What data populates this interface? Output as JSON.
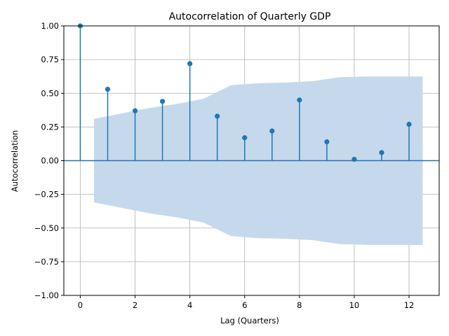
{
  "chart_data": {
    "type": "stem",
    "title": "Autocorrelation of Quarterly GDP",
    "xlabel": "Lag (Quarters)",
    "ylabel": "Autocorrelation",
    "xlim": [
      -0.6,
      13.1
    ],
    "ylim": [
      -1.0,
      1.0
    ],
    "xticks": [
      "0",
      "2",
      "4",
      "6",
      "8",
      "10",
      "12"
    ],
    "yticks": [
      "−1.00",
      "−0.75",
      "−0.50",
      "−0.25",
      "0.00",
      "0.25",
      "0.50",
      "0.75",
      "1.00"
    ],
    "grid": true,
    "lags": [
      0,
      1,
      2,
      3,
      4,
      5,
      6,
      7,
      8,
      9,
      10,
      11,
      12
    ],
    "values": [
      1.0,
      0.53,
      0.37,
      0.44,
      0.72,
      0.33,
      0.17,
      0.22,
      0.45,
      0.14,
      0.01,
      0.06,
      0.27
    ],
    "confidence_band": {
      "x": [
        0.5,
        1.5,
        2.5,
        3.5,
        4.5,
        5.5,
        6.5,
        7.5,
        8.5,
        9.5,
        10.5,
        11.5,
        12.5
      ],
      "upper": [
        0.31,
        0.35,
        0.39,
        0.42,
        0.46,
        0.56,
        0.575,
        0.58,
        0.59,
        0.62,
        0.625,
        0.625,
        0.625
      ]
    },
    "colors": {
      "stem": "#1f77b4",
      "band": "#c6d9ec",
      "grid": "#b0b0b0",
      "axis": "#000000"
    }
  }
}
